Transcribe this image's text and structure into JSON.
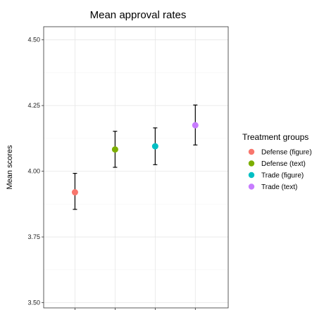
{
  "chart_data": {
    "type": "scatter",
    "title": "Mean approval rates",
    "xlabel": "",
    "ylabel": "Mean scores",
    "ylim": [
      3.48,
      4.55
    ],
    "yticks": [
      "3.50",
      "3.75",
      "4.00",
      "4.25",
      "4.50"
    ],
    "grid": true,
    "error_bars": true,
    "legend": {
      "title": "Treatment groups",
      "position": "right"
    },
    "series": [
      {
        "name": "Defense (figure)",
        "color": "#F8766D",
        "mean": 3.92,
        "lower": 3.855,
        "upper": 3.992
      },
      {
        "name": "Defense (text)",
        "color": "#7CAE00",
        "mean": 4.083,
        "lower": 4.015,
        "upper": 4.152
      },
      {
        "name": "Trade (figure)",
        "color": "#00BFC4",
        "mean": 4.095,
        "lower": 4.025,
        "upper": 4.165
      },
      {
        "name": "Trade (text)",
        "color": "#C77CFF",
        "mean": 4.175,
        "lower": 4.1,
        "upper": 4.252
      }
    ]
  }
}
